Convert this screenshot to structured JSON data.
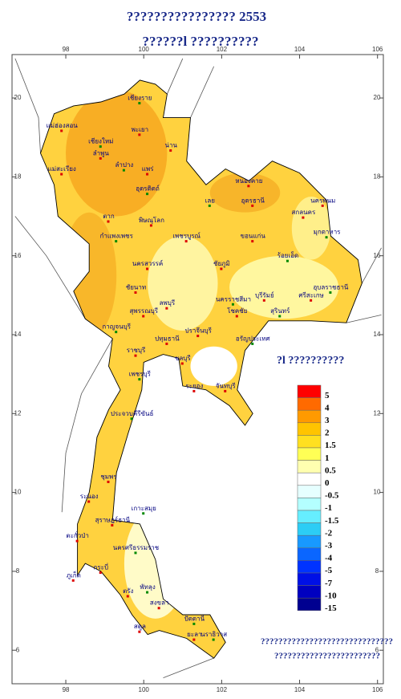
{
  "map": {
    "title_lines": [
      "???????????????? 2553",
      "??????l ??????????"
    ],
    "xlim": [
      96.62,
      106.15
    ],
    "ylim": [
      5.15,
      21.1
    ],
    "xticks": [
      98,
      100,
      102,
      104,
      106
    ],
    "yticks": [
      6,
      8,
      10,
      12,
      14,
      16,
      18,
      20
    ],
    "labels": [
      "เชียงราย",
      "แม่ฮ่องสอน",
      "พะเยา",
      "เชียงใหม่",
      "น่าน",
      "ลำพูน",
      "ลำปาง",
      "แม่สะเรียง",
      "แพร่",
      "อุตรดิตถ์",
      "หนองคาย",
      "อุดรธานี",
      "เลย",
      "นครพนม",
      "สกลนคร",
      "มุกดาหาร",
      "ตาก",
      "พิษณุโลก",
      "กำแพงเพชร",
      "เพชรบูรณ์",
      "ขอนแก่น",
      "ร้อยเอ็ด",
      "นครสวรรค์",
      "ชัยภูมิ",
      "อุบลราชธานี",
      "ลพบุรี",
      "บุรีรัมย์",
      "สุรินทร์",
      "ศรีสะเกษ",
      "ชัยนาท",
      "นครราชสีมา",
      "โชคชัย",
      "สุพรรณบุรี",
      "กาญจนบุรี",
      "ปทุมธานี",
      "ปราจีนบุรี",
      "อรัญประเทศ",
      "ราชบุรี",
      "ชลบุรี",
      "เพชรบุรี",
      "ระยอง",
      "จันทบุรี",
      "ประจวบคีรีขันธ์",
      "ชุมพร",
      "ระนอง",
      "เกาะสมุย",
      "สุราษฎร์ธานี",
      "ตะกั่วป่า",
      "นครศรีธรรมราช",
      "ภูเก็ต",
      "กระบี่",
      "พัทลุง",
      "ตรัง",
      "สงขลา",
      "ปัตตานี",
      "สตูล",
      "ยะลา",
      "นราธิวาส"
    ],
    "legend": {
      "title": "?l ??????????",
      "levels": [
        5,
        4,
        3,
        2,
        1.5,
        1,
        0.5,
        0,
        -0.5,
        -1,
        -1.5,
        -2,
        -3,
        -4,
        -5,
        -7,
        -10,
        -15
      ],
      "colors": [
        "#ff0000",
        "#ff6a00",
        "#ff9a00",
        "#ffc400",
        "#ffe020",
        "#ffff55",
        "#ffffb0",
        "#ffffff",
        "#e6ffff",
        "#b4ffff",
        "#66eeff",
        "#2ccdf5",
        "#1899ff",
        "#0a66ff",
        "#0033ff",
        "#0010e6",
        "#0000c0",
        "#000090"
      ]
    },
    "footnote": [
      "??????????????????????????????",
      "????????????????????????"
    ]
  }
}
